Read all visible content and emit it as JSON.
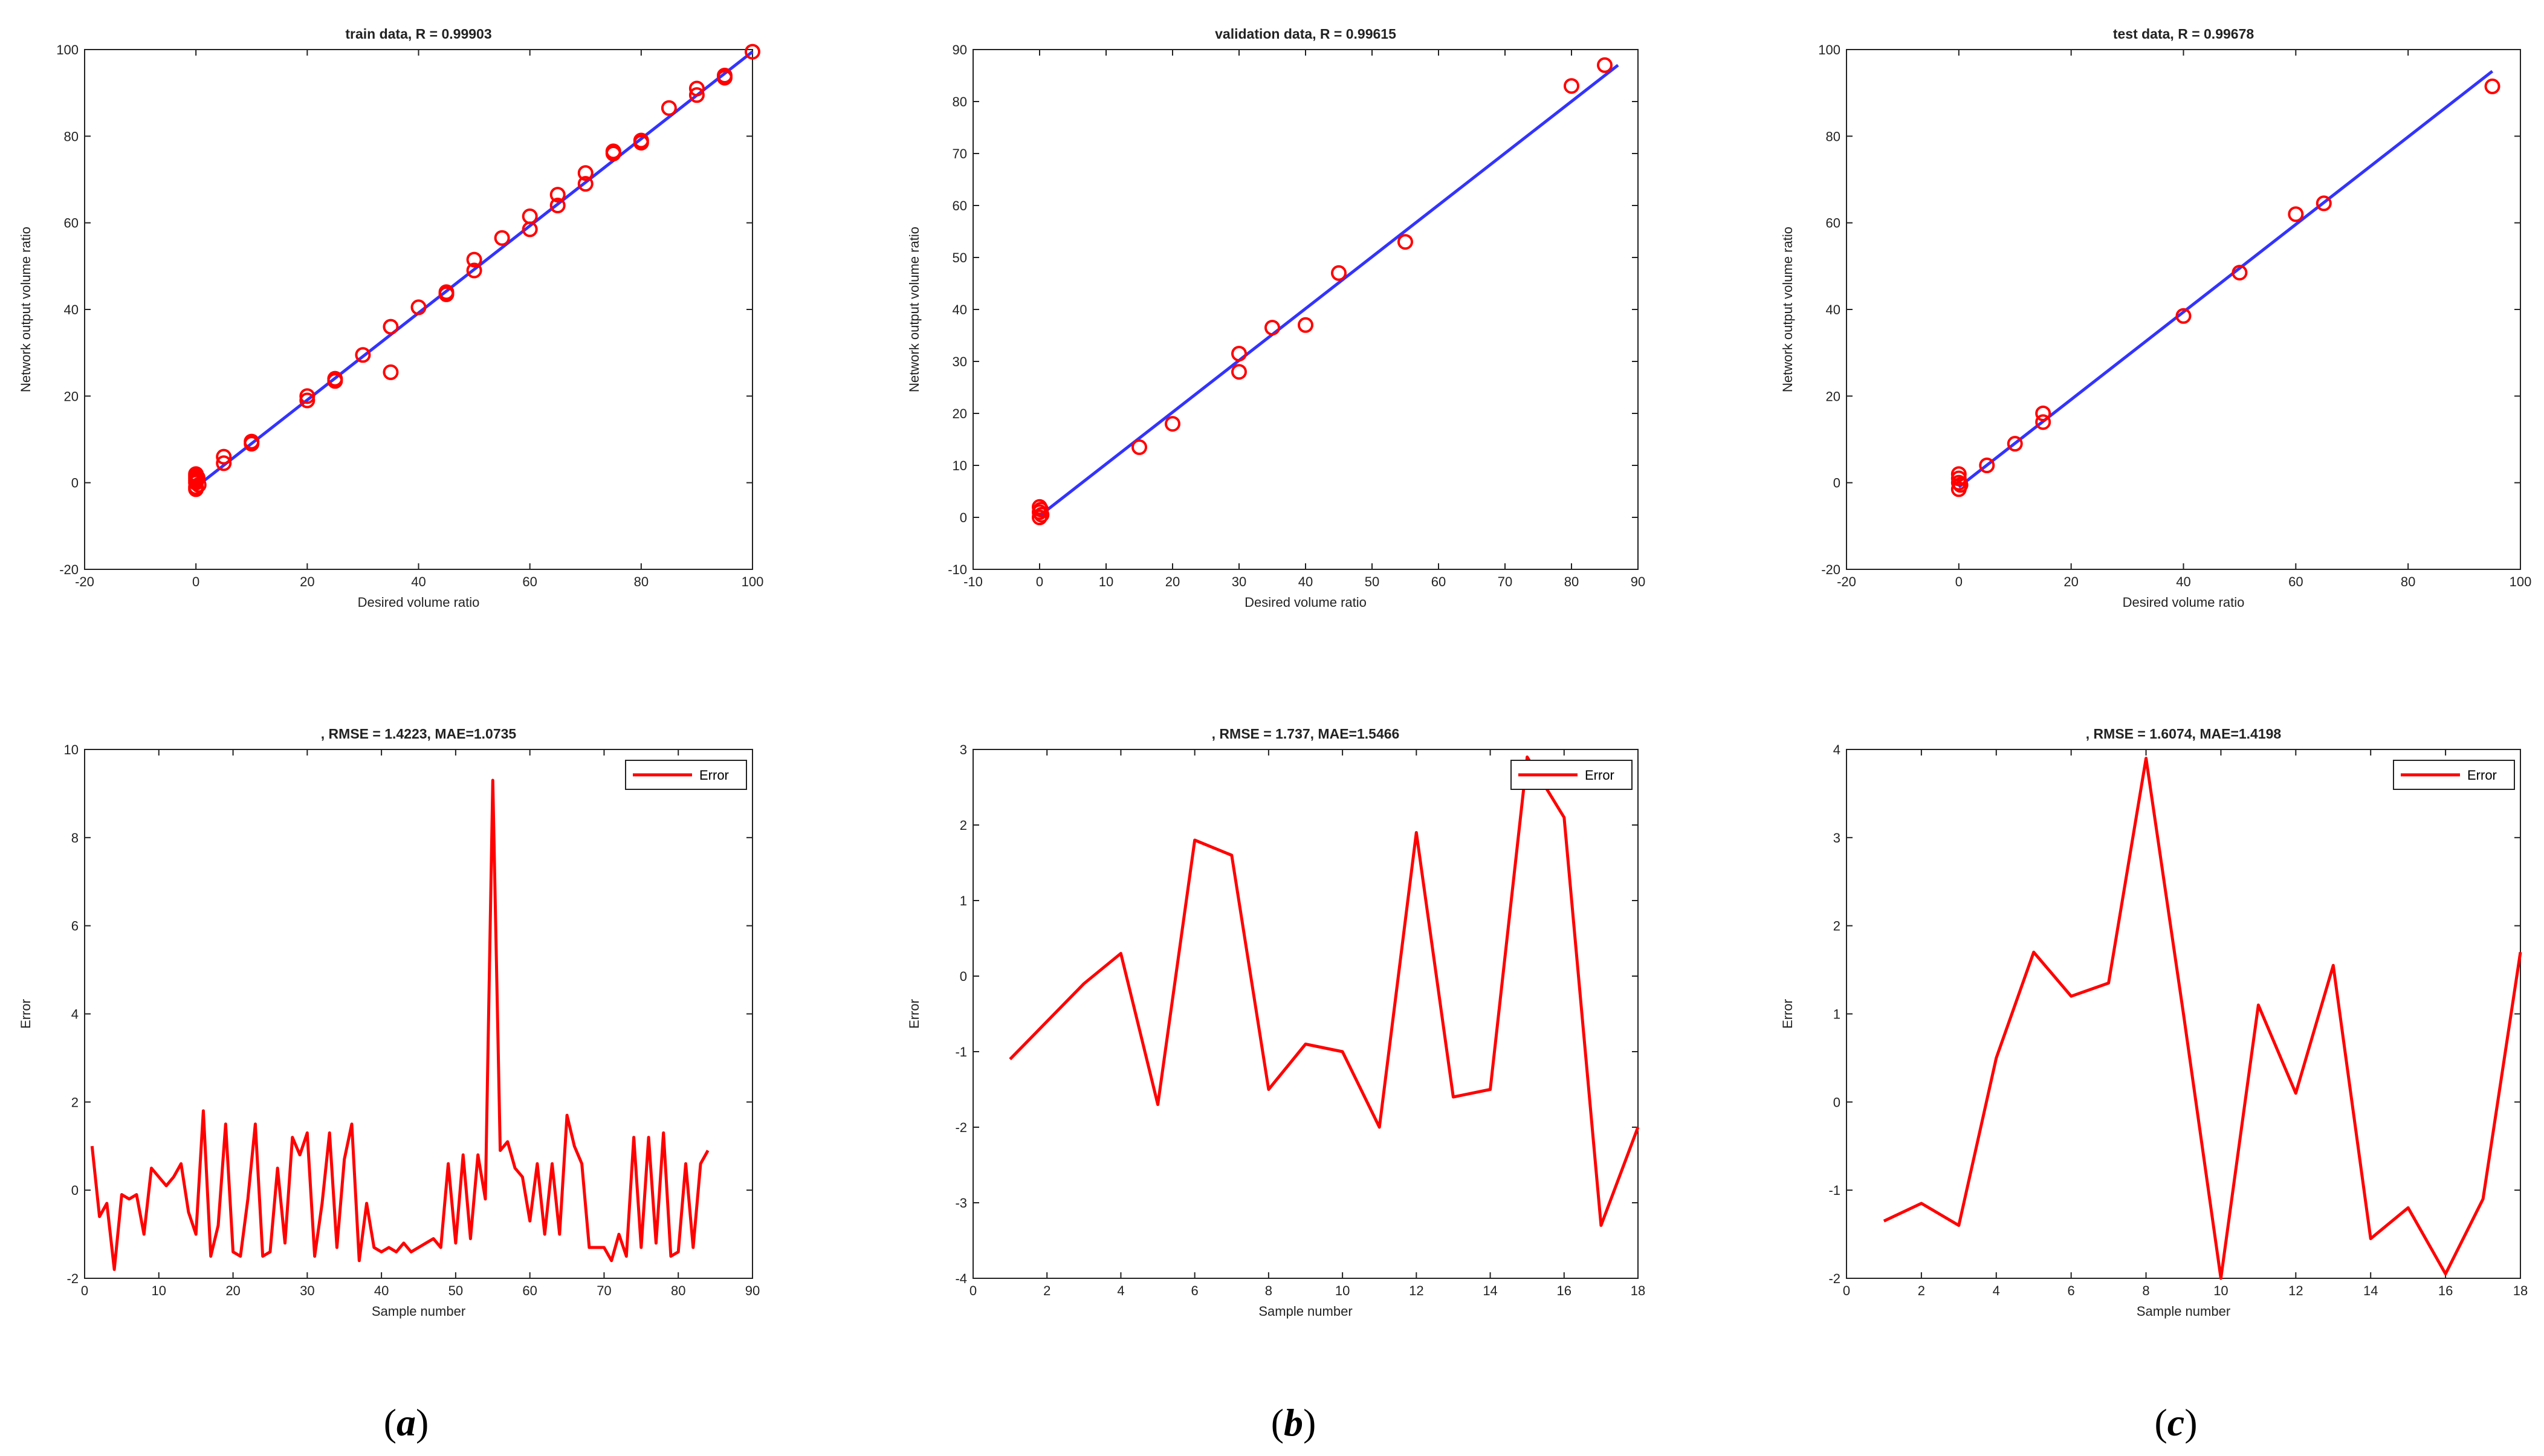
{
  "chart_data": [
    {
      "id": "a-top",
      "type": "scatter",
      "title": "train data,  R = 0.99903",
      "xlabel": "Desired volume ratio",
      "ylabel": "Network output volume ratio",
      "xlim": [
        -20,
        100
      ],
      "ylim": [
        -20,
        100
      ],
      "xticks": [
        -20,
        0,
        20,
        40,
        60,
        80,
        100
      ],
      "yticks": [
        -20,
        0,
        20,
        40,
        60,
        80,
        100
      ],
      "fit_line": [
        [
          -0.5,
          -1.5
        ],
        [
          100,
          99.5
        ]
      ],
      "points": [
        [
          0,
          0
        ],
        [
          0,
          0.5
        ],
        [
          0,
          1
        ],
        [
          0,
          1.5
        ],
        [
          0,
          2
        ],
        [
          0,
          -1
        ],
        [
          0,
          -1.5
        ],
        [
          0.3,
          1.2
        ],
        [
          0.5,
          -0.5
        ],
        [
          5,
          4.5
        ],
        [
          5,
          6
        ],
        [
          10,
          9
        ],
        [
          10,
          9.5
        ],
        [
          20,
          19
        ],
        [
          20,
          20
        ],
        [
          25,
          23.5
        ],
        [
          25,
          24
        ],
        [
          30,
          29.5
        ],
        [
          35,
          36
        ],
        [
          35,
          25.5
        ],
        [
          40,
          40.5
        ],
        [
          45,
          43.5
        ],
        [
          45,
          44
        ],
        [
          50,
          49
        ],
        [
          50,
          51.5
        ],
        [
          55,
          56.5
        ],
        [
          60,
          58.5
        ],
        [
          60,
          61.5
        ],
        [
          65,
          64
        ],
        [
          65,
          66.5
        ],
        [
          70,
          69
        ],
        [
          70,
          71.5
        ],
        [
          75,
          76
        ],
        [
          75,
          76.5
        ],
        [
          80,
          78.5
        ],
        [
          80,
          79
        ],
        [
          85,
          86.5
        ],
        [
          90,
          89.5
        ],
        [
          90,
          91
        ],
        [
          95,
          93.5
        ],
        [
          95,
          94
        ],
        [
          100,
          99.5
        ]
      ]
    },
    {
      "id": "b-top",
      "type": "scatter",
      "title": "validation data,  R = 0.99615",
      "xlabel": "Desired volume ratio",
      "ylabel": "Network output volume ratio",
      "xlim": [
        -10,
        90
      ],
      "ylim": [
        -10,
        90
      ],
      "xticks": [
        -10,
        0,
        10,
        20,
        30,
        40,
        50,
        60,
        70,
        80,
        90
      ],
      "yticks": [
        -10,
        0,
        10,
        20,
        30,
        40,
        50,
        60,
        70,
        80,
        90
      ],
      "fit_line": [
        [
          0,
          0.3
        ],
        [
          87,
          87
        ]
      ],
      "points": [
        [
          0,
          0
        ],
        [
          0,
          1
        ],
        [
          0,
          2
        ],
        [
          0.3,
          0.5
        ],
        [
          0.2,
          1.5
        ],
        [
          15,
          13.5
        ],
        [
          20,
          18
        ],
        [
          30,
          28
        ],
        [
          30,
          31.5
        ],
        [
          35,
          36.5
        ],
        [
          40,
          37
        ],
        [
          45,
          47
        ],
        [
          55,
          53
        ],
        [
          80,
          83
        ],
        [
          85,
          87
        ]
      ]
    },
    {
      "id": "c-top",
      "type": "scatter",
      "title": "test data,  R = 0.99678",
      "xlabel": "Desired volume ratio",
      "ylabel": "Network output volume ratio",
      "xlim": [
        -20,
        100
      ],
      "ylim": [
        -20,
        100
      ],
      "xticks": [
        -20,
        0,
        20,
        40,
        60,
        80,
        100
      ],
      "yticks": [
        -20,
        0,
        20,
        40,
        60,
        80,
        100
      ],
      "fit_line": [
        [
          0,
          -1
        ],
        [
          95,
          95
        ]
      ],
      "points": [
        [
          0,
          0
        ],
        [
          0,
          1
        ],
        [
          0,
          2
        ],
        [
          0,
          -1.5
        ],
        [
          0.3,
          -0.5
        ],
        [
          5,
          4
        ],
        [
          10,
          9
        ],
        [
          15,
          14
        ],
        [
          15,
          16
        ],
        [
          40,
          38.5
        ],
        [
          50,
          48.5
        ],
        [
          60,
          62
        ],
        [
          65,
          64.5
        ],
        [
          95,
          91.5
        ]
      ]
    },
    {
      "id": "a-bottom",
      "type": "line",
      "title": ", RMSE = 1.4223, MAE=1.0735",
      "xlabel": "Sample number",
      "ylabel": "Error",
      "xlim": [
        0,
        90
      ],
      "ylim": [
        -2,
        10
      ],
      "xticks": [
        0,
        10,
        20,
        30,
        40,
        50,
        60,
        70,
        80,
        90
      ],
      "yticks": [
        -2,
        0,
        2,
        4,
        6,
        8,
        10
      ],
      "legend": "Error",
      "series": [
        {
          "name": "Error",
          "values": [
            1.0,
            -0.6,
            -0.3,
            -1.8,
            -0.1,
            -0.2,
            -0.1,
            -1.0,
            0.5,
            0.3,
            0.1,
            0.3,
            0.6,
            -0.5,
            -1.0,
            1.8,
            -1.5,
            -0.8,
            1.5,
            -1.4,
            -1.5,
            -0.2,
            1.5,
            -1.5,
            -1.4,
            0.5,
            -1.2,
            1.2,
            0.8,
            1.3,
            -1.5,
            -0.3,
            1.3,
            -1.3,
            0.7,
            1.5,
            -1.6,
            -0.3,
            -1.3,
            -1.4,
            -1.3,
            -1.4,
            -1.2,
            -1.4,
            -1.3,
            -1.2,
            -1.1,
            -1.3,
            0.6,
            -1.2,
            0.8,
            -1.1,
            0.8,
            -0.2,
            9.3,
            0.9,
            1.1,
            0.5,
            0.3,
            -0.7,
            0.6,
            -1.0,
            0.6,
            -1.0,
            1.7,
            1.0,
            0.6,
            -1.3,
            -1.3,
            -1.3,
            -1.6,
            -1.0,
            -1.5,
            1.2,
            -1.3,
            1.2,
            -1.2,
            1.3,
            -1.5,
            -1.4,
            0.6,
            -1.3,
            0.6,
            0.9
          ]
        }
      ]
    },
    {
      "id": "b-bottom",
      "type": "line",
      "title": ", RMSE = 1.737, MAE=1.5466",
      "xlabel": "Sample number",
      "ylabel": "Error",
      "xlim": [
        0,
        18
      ],
      "ylim": [
        -4,
        3
      ],
      "xticks": [
        0,
        2,
        4,
        6,
        8,
        10,
        12,
        14,
        16,
        18
      ],
      "yticks": [
        -4,
        -3,
        -2,
        -1,
        0,
        1,
        2,
        3
      ],
      "legend": "Error",
      "series": [
        {
          "name": "Error",
          "values": [
            -1.1,
            -0.6,
            -0.1,
            0.3,
            -1.7,
            1.8,
            1.6,
            -1.5,
            -0.9,
            -1.0,
            -2.0,
            1.9,
            -1.6,
            -1.5,
            2.9,
            2.1,
            -3.3,
            -2.0
          ]
        }
      ]
    },
    {
      "id": "c-bottom",
      "type": "line",
      "title": ", RMSE = 1.6074, MAE=1.4198",
      "xlabel": "Sample number",
      "ylabel": "Error",
      "xlim": [
        0,
        18
      ],
      "ylim": [
        -2,
        4
      ],
      "xticks": [
        0,
        2,
        4,
        6,
        8,
        10,
        12,
        14,
        16,
        18
      ],
      "yticks": [
        -2,
        -1,
        0,
        1,
        2,
        3,
        4
      ],
      "legend": "Error",
      "series": [
        {
          "name": "Error",
          "values": [
            -1.35,
            -1.15,
            -1.4,
            0.5,
            1.7,
            1.2,
            1.35,
            3.9,
            1.0,
            -2.0,
            1.1,
            0.1,
            1.55,
            -1.55,
            -1.2,
            -1.95,
            -1.1,
            1.7
          ]
        }
      ]
    }
  ],
  "captions": [
    {
      "open": "(",
      "letter": "a",
      "close": ")"
    },
    {
      "open": "(",
      "letter": "b",
      "close": ")"
    },
    {
      "open": "(",
      "letter": "c",
      "close": ")"
    }
  ],
  "colors": {
    "fit": "#3333ff",
    "marker": "#ff0000",
    "error": "#ff0000"
  }
}
